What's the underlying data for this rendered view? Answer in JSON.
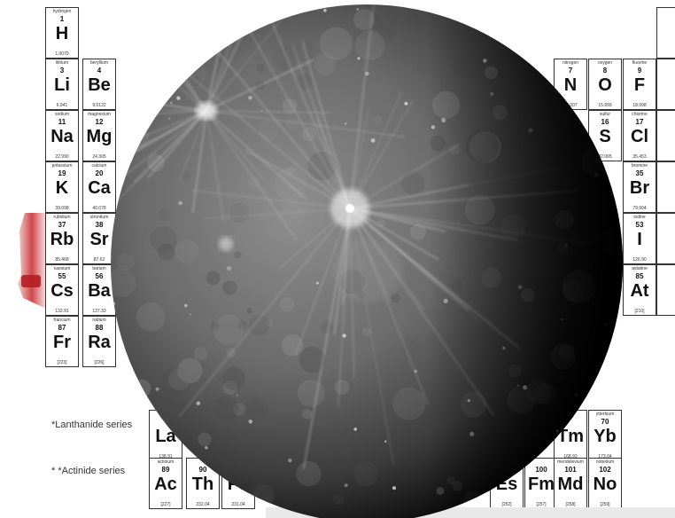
{
  "photo": {
    "subject": "planet-mercury",
    "palette": {
      "paper": "#ffffff",
      "ink": "#111111",
      "planet_light": "#8e8e8e",
      "planet_mid": "#5e5e5e",
      "planet_dark": "#000000",
      "red_accent": "#c6262a"
    }
  },
  "periodic_table": {
    "elements": [
      {
        "key": "h",
        "name": "hydrogen",
        "number": "1",
        "symbol": "H",
        "mass": "1.0079"
      },
      {
        "key": "li",
        "name": "lithium",
        "number": "3",
        "symbol": "Li",
        "mass": "6.941"
      },
      {
        "key": "be",
        "name": "beryllium",
        "number": "4",
        "symbol": "Be",
        "mass": "9.0122"
      },
      {
        "key": "na",
        "name": "sodium",
        "number": "11",
        "symbol": "Na",
        "mass": "22.990"
      },
      {
        "key": "mg",
        "name": "magnesium",
        "number": "12",
        "symbol": "Mg",
        "mass": "24.305"
      },
      {
        "key": "k",
        "name": "potassium",
        "number": "19",
        "symbol": "K",
        "mass": "39.098"
      },
      {
        "key": "ca",
        "name": "calcium",
        "number": "20",
        "symbol": "Ca",
        "mass": "40.078"
      },
      {
        "key": "rb",
        "name": "rubidium",
        "number": "37",
        "symbol": "Rb",
        "mass": "85.468"
      },
      {
        "key": "sr",
        "name": "strontium",
        "number": "38",
        "symbol": "Sr",
        "mass": "87.62"
      },
      {
        "key": "cs",
        "name": "caesium",
        "number": "55",
        "symbol": "Cs",
        "mass": "132.91"
      },
      {
        "key": "ba",
        "name": "barium",
        "number": "56",
        "symbol": "Ba",
        "mass": "137.33"
      },
      {
        "key": "fr",
        "name": "francium",
        "number": "87",
        "symbol": "Fr",
        "mass": "[223]"
      },
      {
        "key": "ra",
        "name": "radium",
        "number": "88",
        "symbol": "Ra",
        "mass": "[226]"
      },
      {
        "key": "n",
        "name": "nitrogen",
        "number": "7",
        "symbol": "N",
        "mass": "14.007"
      },
      {
        "key": "o",
        "name": "oxygen",
        "number": "8",
        "symbol": "O",
        "mass": "15.999"
      },
      {
        "key": "f",
        "name": "fluorine",
        "number": "9",
        "symbol": "F",
        "mass": "18.998"
      },
      {
        "key": "s",
        "name": "sulfur",
        "number": "16",
        "symbol": "S",
        "mass": "32.065"
      },
      {
        "key": "cl",
        "name": "chlorine",
        "number": "17",
        "symbol": "Cl",
        "mass": "35.453"
      },
      {
        "key": "br",
        "name": "bromine",
        "number": "35",
        "symbol": "Br",
        "mass": "79.904"
      },
      {
        "key": "i",
        "name": "iodine",
        "number": "53",
        "symbol": "I",
        "mass": "126.90"
      },
      {
        "key": "at",
        "name": "astatine",
        "number": "85",
        "symbol": "At",
        "mass": "[210]"
      },
      {
        "key": "la",
        "name": "",
        "number": "",
        "symbol": "La",
        "mass": "138.91"
      },
      {
        "key": "ac",
        "name": "actinium",
        "number": "89",
        "symbol": "Ac",
        "mass": "[227]"
      },
      {
        "key": "th",
        "name": "",
        "number": "90",
        "symbol": "Th",
        "mass": "232.04"
      },
      {
        "key": "pa",
        "name": "",
        "number": "",
        "symbol": "Pa",
        "mass": "231.04"
      },
      {
        "key": "es",
        "name": "",
        "number": "",
        "symbol": "Es",
        "mass": "[252]"
      },
      {
        "key": "tm",
        "name": "",
        "number": "",
        "symbol": "Tm",
        "mass": "168.93"
      },
      {
        "key": "yb",
        "name": "ytterbium",
        "number": "70",
        "symbol": "Yb",
        "mass": "173.04"
      },
      {
        "key": "fm",
        "name": "",
        "number": "100",
        "symbol": "Fm",
        "mass": "[257]"
      },
      {
        "key": "md",
        "name": "mendelevium",
        "number": "101",
        "symbol": "Md",
        "mass": "[258]"
      },
      {
        "key": "no",
        "name": "nobelium",
        "number": "102",
        "symbol": "No",
        "mass": "[259]"
      }
    ],
    "series_labels": {
      "lanthanide": "*Lanthanide series",
      "actinide": "* *Actinide series"
    }
  }
}
